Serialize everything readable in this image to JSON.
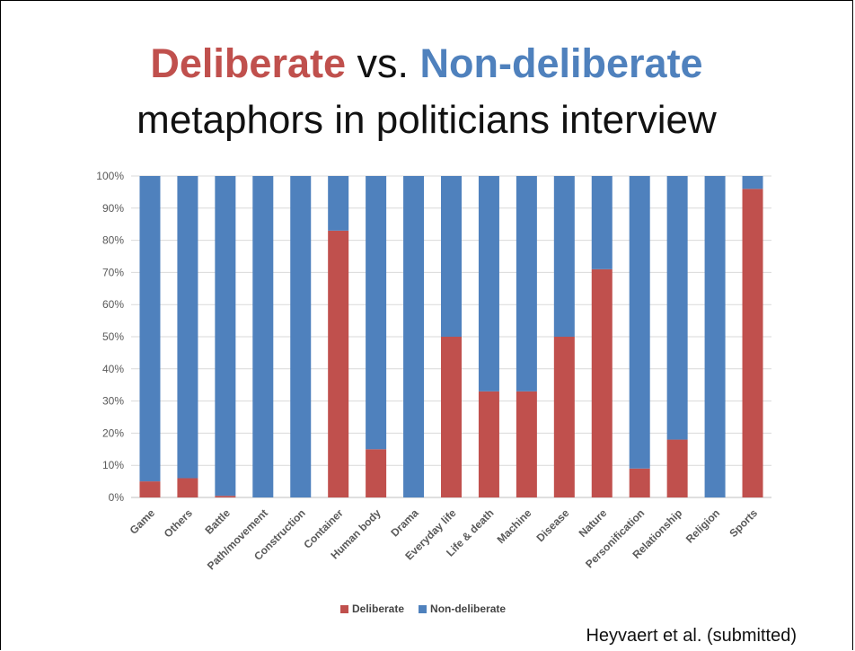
{
  "title": {
    "part1": "Deliberate",
    "sep": " vs. ",
    "part2": "Non-deliberate",
    "line2": "metaphors in politicians interview"
  },
  "colors": {
    "deliberate": "#c0504d",
    "nondeliberate": "#4f81bd",
    "title_red": "#c0504d",
    "title_blue": "#4f81bd"
  },
  "citation": "Heyvaert et al. (submitted)",
  "chart_data": {
    "type": "bar",
    "stacked": true,
    "percent": true,
    "categories": [
      "Game",
      "Others",
      "Battle",
      "Path/movement",
      "Construction",
      "Container",
      "Human body",
      "Drama",
      "Everyday life",
      "Life & death",
      "Machine",
      "Disease",
      "Nature",
      "Personification",
      "Relationship",
      "Religion",
      "Sports"
    ],
    "series": [
      {
        "name": "Deliberate",
        "values": [
          5,
          6,
          0.5,
          0,
          0,
          83,
          15,
          0,
          50,
          33,
          33,
          50,
          71,
          9,
          18,
          0,
          96
        ]
      },
      {
        "name": "Non-deliberate",
        "values": [
          95,
          94,
          99.5,
          100,
          100,
          17,
          85,
          100,
          50,
          67,
          67,
          50,
          29,
          91,
          82,
          100,
          4
        ]
      }
    ],
    "yticks": [
      "0%",
      "10%",
      "20%",
      "30%",
      "40%",
      "50%",
      "60%",
      "70%",
      "80%",
      "90%",
      "100%"
    ],
    "ylim": [
      0,
      100
    ],
    "grid": true,
    "legend": "bottom"
  }
}
